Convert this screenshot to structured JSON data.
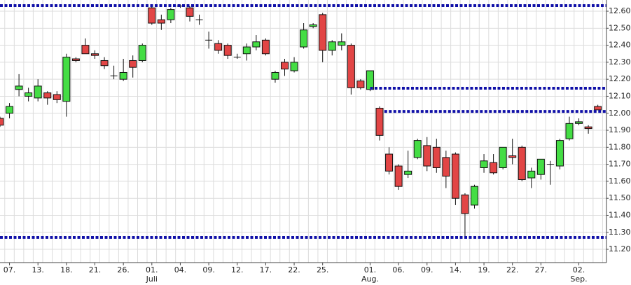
{
  "chart_data": {
    "type": "candlestick",
    "categories": [
      null,
      "07.",
      null,
      null,
      "13.",
      null,
      null,
      "18.",
      null,
      null,
      "21.",
      null,
      null,
      "26.",
      null,
      null,
      "01.",
      null,
      null,
      "04.",
      null,
      null,
      "09.",
      null,
      null,
      "12.",
      null,
      null,
      "17.",
      null,
      null,
      "22.",
      null,
      null,
      "25.",
      null,
      null,
      null,
      null,
      "01.",
      null,
      null,
      "06.",
      null,
      null,
      "09.",
      null,
      null,
      "14.",
      null,
      null,
      "19.",
      null,
      null,
      "22.",
      null,
      null,
      "27.",
      null,
      null,
      null,
      "02.",
      null,
      null
    ],
    "x_sublabels": [
      null,
      null,
      null,
      null,
      null,
      null,
      null,
      null,
      null,
      null,
      null,
      null,
      null,
      null,
      null,
      null,
      "Juli",
      null,
      null,
      null,
      null,
      null,
      null,
      null,
      null,
      null,
      null,
      null,
      null,
      null,
      null,
      null,
      null,
      null,
      null,
      null,
      null,
      null,
      null,
      "Aug.",
      null,
      null,
      null,
      null,
      null,
      null,
      null,
      null,
      null,
      null,
      null,
      null,
      null,
      null,
      null,
      null,
      null,
      null,
      null,
      null,
      null,
      "Sep.",
      null,
      null
    ],
    "open": [
      11.97,
      12.0,
      12.14,
      12.1,
      12.09,
      12.12,
      12.11,
      12.07,
      12.32,
      12.4,
      12.35,
      12.31,
      12.22,
      12.2,
      12.31,
      12.31,
      12.62,
      12.55,
      12.55,
      12.63,
      12.62,
      12.55,
      12.43,
      12.41,
      12.4,
      12.33,
      12.35,
      12.39,
      12.43,
      12.2,
      12.3,
      12.25,
      12.39,
      12.51,
      12.58,
      12.37,
      12.4,
      12.4,
      12.19,
      12.14,
      12.03,
      11.76,
      11.69,
      11.64,
      11.74,
      11.81,
      11.8,
      11.74,
      11.76,
      11.52,
      11.46,
      11.68,
      11.71,
      11.68,
      11.75,
      11.8,
      11.62,
      11.64,
      11.7,
      11.69,
      11.85,
      11.94,
      11.92,
      12.04
    ],
    "high": [
      11.98,
      12.06,
      12.23,
      12.15,
      12.2,
      12.13,
      12.13,
      12.35,
      12.33,
      12.44,
      12.37,
      12.33,
      12.28,
      12.32,
      12.34,
      12.41,
      12.63,
      12.58,
      12.62,
      12.64,
      12.63,
      12.58,
      12.48,
      12.43,
      12.41,
      12.35,
      12.41,
      12.46,
      12.44,
      12.25,
      12.32,
      12.33,
      12.53,
      12.53,
      12.59,
      12.43,
      12.47,
      12.41,
      12.2,
      12.25,
      12.04,
      11.8,
      11.7,
      11.78,
      11.85,
      11.86,
      11.85,
      11.78,
      11.77,
      11.53,
      11.58,
      11.76,
      11.76,
      11.8,
      11.85,
      11.81,
      11.68,
      11.73,
      11.72,
      11.85,
      11.98,
      11.97,
      11.93,
      12.05
    ],
    "low": [
      11.92,
      11.97,
      12.1,
      12.07,
      12.07,
      12.05,
      12.06,
      11.98,
      12.3,
      12.35,
      12.32,
      12.26,
      12.2,
      12.19,
      12.21,
      12.3,
      12.52,
      12.49,
      12.53,
      12.62,
      12.54,
      12.52,
      12.38,
      12.35,
      12.32,
      12.32,
      12.31,
      12.37,
      12.34,
      12.18,
      12.22,
      12.24,
      12.38,
      12.5,
      12.3,
      12.34,
      12.37,
      12.11,
      12.14,
      12.13,
      11.84,
      11.64,
      11.55,
      11.62,
      11.73,
      11.66,
      11.65,
      11.56,
      11.46,
      11.27,
      11.44,
      11.65,
      11.64,
      11.67,
      11.7,
      11.6,
      11.56,
      11.61,
      11.58,
      11.67,
      11.84,
      11.93,
      11.88,
      12.02
    ],
    "close": [
      11.93,
      12.04,
      12.16,
      12.12,
      12.16,
      12.09,
      12.08,
      12.33,
      12.31,
      12.35,
      12.34,
      12.28,
      12.22,
      12.24,
      12.27,
      12.4,
      12.53,
      12.53,
      12.61,
      12.63,
      12.57,
      12.55,
      12.43,
      12.37,
      12.34,
      12.33,
      12.39,
      12.42,
      12.35,
      12.24,
      12.26,
      12.3,
      12.49,
      12.52,
      12.37,
      12.42,
      12.42,
      12.15,
      12.15,
      12.25,
      11.87,
      11.66,
      11.57,
      11.66,
      11.84,
      11.69,
      11.68,
      11.63,
      11.5,
      11.41,
      11.57,
      11.72,
      11.65,
      11.8,
      11.74,
      11.61,
      11.66,
      11.73,
      11.7,
      11.84,
      11.94,
      11.95,
      11.91,
      12.02
    ],
    "up_color": "#44dd44",
    "down_color": "#e24545",
    "ylim": [
      11.122,
      12.666
    ],
    "yticks": [
      {
        "value": 11.2,
        "label": "11.200"
      },
      {
        "value": 11.3,
        "label": "11.300"
      },
      {
        "value": 11.4,
        "label": "11.400"
      },
      {
        "value": 11.5,
        "label": "11.500"
      },
      {
        "value": 11.6,
        "label": "11.600"
      },
      {
        "value": 11.7,
        "label": "11.700"
      },
      {
        "value": 11.8,
        "label": "11.800"
      },
      {
        "value": 11.9,
        "label": "11.900"
      },
      {
        "value": 12.0,
        "label": "12.000"
      },
      {
        "value": 12.1,
        "label": "12.100"
      },
      {
        "value": 12.2,
        "label": "12.200"
      },
      {
        "value": 12.3,
        "label": "12.300"
      },
      {
        "value": 12.4,
        "label": "12.400"
      },
      {
        "value": 12.5,
        "label": "12.500"
      },
      {
        "value": 12.6,
        "label": "12.600"
      }
    ],
    "levels": [
      {
        "value": 12.633,
        "from": 0,
        "color": "#1010a8"
      },
      {
        "value": 12.147,
        "from": 39,
        "color": "#1010a8"
      },
      {
        "value": 12.011,
        "from": 40.5,
        "color": "#1010a8"
      },
      {
        "value": 11.27,
        "from": 0,
        "color": "#1010a8"
      }
    ],
    "grid": true
  }
}
